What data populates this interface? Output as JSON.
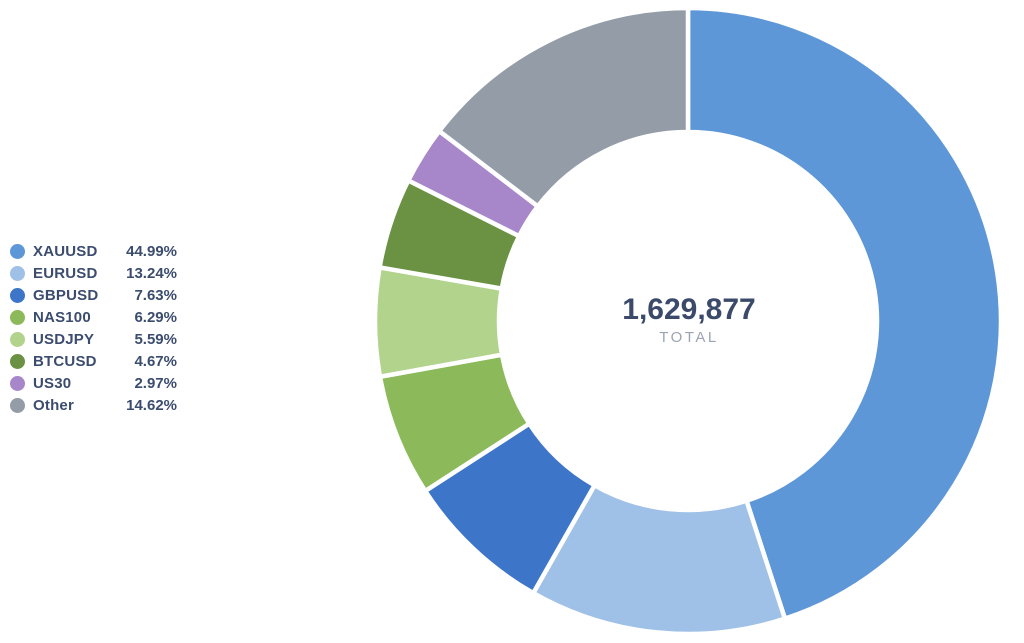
{
  "chart_data": {
    "type": "pie",
    "subtype": "donut",
    "direction": "clockwise",
    "start_angle_deg": 0,
    "legend_position": "left",
    "center": {
      "total_value": "1,629,877",
      "total_numeric": 1629877,
      "total_label": "TOTAL"
    },
    "series": [
      {
        "label": "XAUUSD",
        "percent": 44.99,
        "percent_label": "44.99%",
        "color": "#5d97d8"
      },
      {
        "label": "EURUSD",
        "percent": 13.24,
        "percent_label": "13.24%",
        "color": "#9fc1e7"
      },
      {
        "label": "GBPUSD",
        "percent": 7.63,
        "percent_label": "7.63%",
        "color": "#3d75c9"
      },
      {
        "label": "NAS100",
        "percent": 6.29,
        "percent_label": "6.29%",
        "color": "#8cba5b"
      },
      {
        "label": "USDJPY",
        "percent": 5.59,
        "percent_label": "5.59%",
        "color": "#b1d38c"
      },
      {
        "label": "BTCUSD",
        "percent": 4.67,
        "percent_label": "4.67%",
        "color": "#6b9142"
      },
      {
        "label": "US30",
        "percent": 2.97,
        "percent_label": "2.97%",
        "color": "#a787c9"
      },
      {
        "label": "Other",
        "percent": 14.62,
        "percent_label": "14.62%",
        "color": "#949ca8"
      }
    ],
    "colors": {
      "text_primary": "#3b4c6e",
      "text_muted": "#9ba4b3",
      "slice_gap": "#ffffff"
    }
  }
}
